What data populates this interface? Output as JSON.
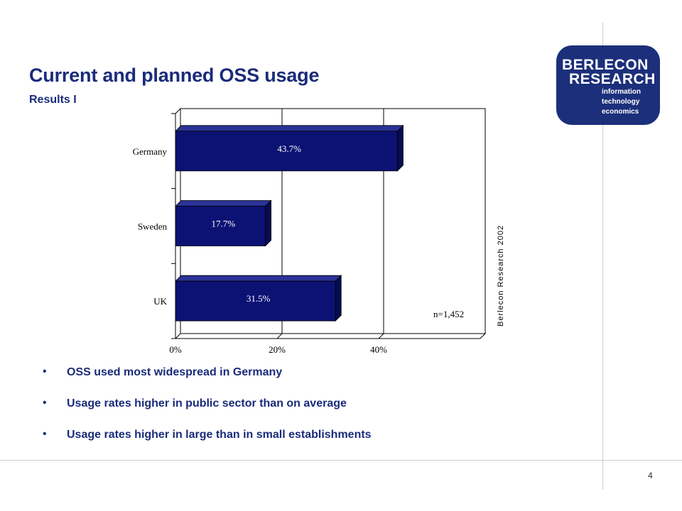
{
  "slide": {
    "title": "Current and planned OSS usage",
    "subtitle": "Results I",
    "page_number": "4",
    "bullets": [
      "OSS used most widespread in Germany",
      "Usage rates higher in public sector than on average",
      "Usage rates higher in large than in small establishments"
    ]
  },
  "logo": {
    "line1": "BERLECON",
    "line2": "RESEARCH",
    "tagline": [
      "information",
      "technology",
      "economics"
    ],
    "background": "#1c2f7a"
  },
  "chart_data": {
    "type": "bar",
    "orientation": "horizontal",
    "categories": [
      "Germany",
      "Sweden",
      "UK"
    ],
    "values": [
      43.7,
      17.7,
      31.5
    ],
    "data_labels": [
      "43.7%",
      "17.7%",
      "31.5%"
    ],
    "x_ticks": [
      "0%",
      "20%",
      "40%"
    ],
    "xlim": [
      0,
      60
    ],
    "bar_color": "#0c1273",
    "grid": true,
    "annotation": "n=1,452",
    "source_note": "Berlecon Research 2002"
  }
}
